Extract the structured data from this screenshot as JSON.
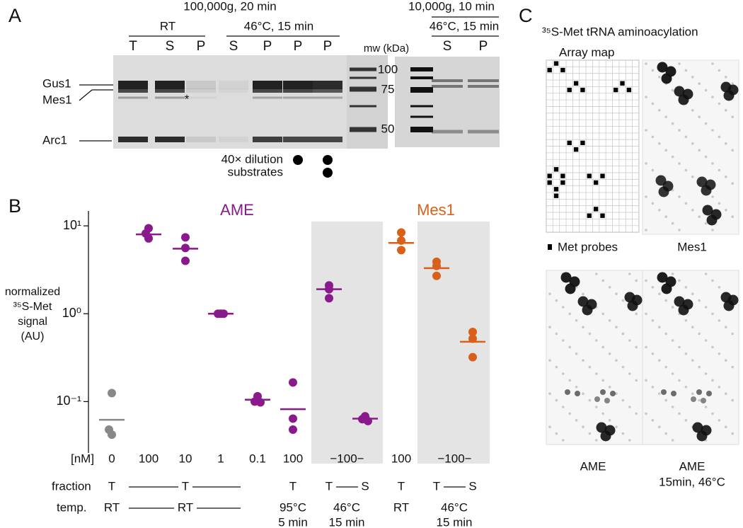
{
  "panel_a": {
    "label": "A",
    "header_left": "100,000g, 20 min",
    "group_rt": "RT",
    "group_46": "46°C, 15 min",
    "lanes": [
      "T",
      "S",
      "P",
      "S",
      "P",
      "P",
      "P"
    ],
    "mw_label": "mw (kDa)",
    "header_right": "10,000g, 10 min",
    "group_right": "46°C, 15 min",
    "lanes_right": [
      "S",
      "P"
    ],
    "proteins": [
      "Gus1",
      "Mes1",
      "Arc1"
    ],
    "asterisk": "*",
    "mw_markers": [
      100,
      75,
      50
    ],
    "conditions": [
      "40× dilution",
      "substrates"
    ]
  },
  "chart_data": {
    "type": "dot",
    "panel_label": "B",
    "y_label": [
      "normalized",
      "³⁵S-Met",
      "signal",
      "(AU)"
    ],
    "log_scale": true,
    "ylim": [
      0.026,
      14.8
    ],
    "yticks": [
      {
        "value": 10,
        "label": "10¹"
      },
      {
        "value": 1,
        "label": "10⁰"
      },
      {
        "value": 0.1,
        "label": "10⁻¹"
      }
    ],
    "category_label": "[nM]",
    "categories": [
      "0",
      "100",
      "10",
      "1",
      "0.1",
      "100",
      "−100−",
      null,
      "100",
      "−100−",
      null
    ],
    "series": [
      {
        "color": "#888888",
        "values": [
          [
            0.125,
            0.048,
            0.042
          ],
          null,
          null,
          null,
          null,
          null,
          null,
          null,
          null,
          null,
          null
        ],
        "means": [
          0.062,
          null,
          null,
          null,
          null,
          null,
          null,
          null,
          null,
          null,
          null
        ]
      },
      {
        "name": "AME",
        "color": "#8a1a8c",
        "values": [
          null,
          [
            9.4,
            8.2,
            7.2
          ],
          [
            7.4,
            5.6,
            4.0
          ],
          [
            1,
            1,
            1
          ],
          [
            0.115,
            0.1,
            0.098
          ],
          [
            0.165,
            0.064,
            0.048
          ],
          [
            2.1,
            1.9,
            1.5
          ],
          [
            0.068,
            0.063,
            0.06
          ],
          null,
          null,
          null
        ],
        "means": [
          null,
          8.0,
          5.5,
          1,
          0.105,
          0.082,
          1.9,
          0.064,
          null,
          null,
          null
        ]
      },
      {
        "name": "Mes1",
        "color": "#d9601a",
        "values": [
          null,
          null,
          null,
          null,
          null,
          null,
          null,
          null,
          [
            8.4,
            6.8,
            5.3
          ],
          [
            3.9,
            3.5,
            2.7
          ],
          [
            0.62,
            0.52,
            0.32
          ]
        ],
        "means": [
          null,
          null,
          null,
          null,
          null,
          null,
          null,
          null,
          6.4,
          3.3,
          0.48
        ]
      }
    ],
    "rows": [
      {
        "label": "fraction",
        "items": [
          "T",
          "T",
          "T",
          "T",
          "S",
          "T",
          "T",
          "S"
        ]
      },
      {
        "label": "temp.",
        "items": [
          "RT",
          "RT",
          [
            "95°C",
            "5 min"
          ],
          [
            "46°C",
            "15 min"
          ],
          "RT",
          [
            "46°C",
            "15 min"
          ]
        ]
      }
    ]
  },
  "panel_c": {
    "label": "C",
    "title": "³⁵S-Met tRNA aminoacylation",
    "array_map": "Array map",
    "legend": "Met probes",
    "captions": [
      "Mes1",
      "AME",
      "AME",
      "15min, 46°C"
    ]
  }
}
